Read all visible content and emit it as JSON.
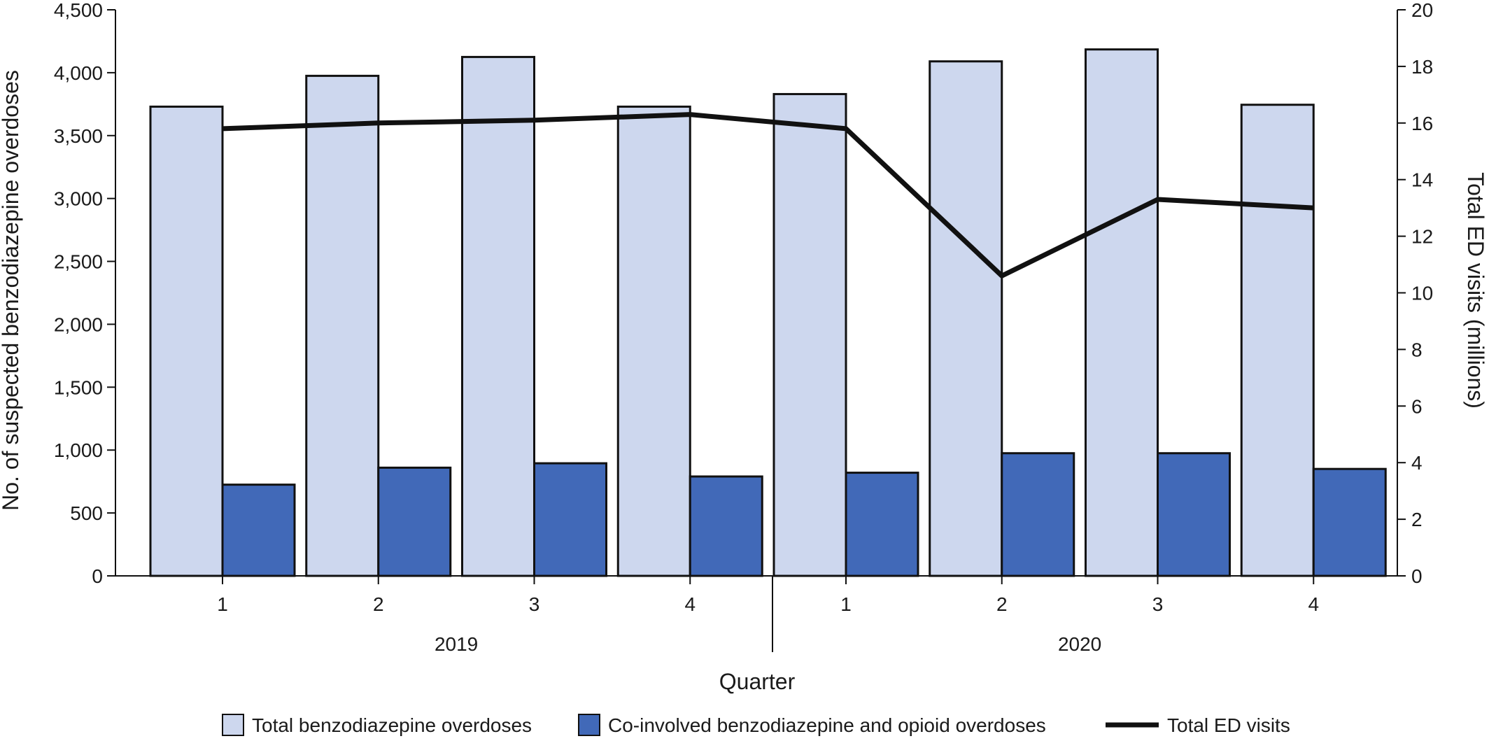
{
  "chart_data": {
    "type": "bar",
    "categories": [
      "1",
      "2",
      "3",
      "4",
      "1",
      "2",
      "3",
      "4"
    ],
    "groups": [
      {
        "label": "2019",
        "categories": [
          "1",
          "2",
          "3",
          "4"
        ]
      },
      {
        "label": "2020",
        "categories": [
          "1",
          "2",
          "3",
          "4"
        ]
      }
    ],
    "series": [
      {
        "name": "Total benzodiazepine overdoses",
        "type": "bar",
        "axis": "left",
        "color": "#cdd7ee",
        "values": [
          3730,
          3975,
          4125,
          3730,
          3830,
          4090,
          4185,
          3745
        ]
      },
      {
        "name": "Co-involved benzodiazepine and opioid overdoses",
        "type": "bar",
        "axis": "left",
        "color": "#4169b8",
        "values": [
          725,
          860,
          895,
          790,
          820,
          975,
          975,
          850
        ]
      },
      {
        "name": "Total ED visits",
        "type": "line",
        "axis": "right",
        "color": "#111111",
        "values": [
          15.8,
          16.0,
          16.1,
          16.3,
          15.8,
          10.6,
          13.3,
          13.0
        ]
      }
    ],
    "xlabel": "Quarter",
    "ylabel": "No. of suspected benzodiazepine overdoses",
    "ylabel_right": "Total ED visits (millions)",
    "ylim": [
      0,
      4500
    ],
    "ylim_right": [
      0,
      20
    ],
    "yticks": [
      "0",
      "500",
      "1,000",
      "1,500",
      "2,000",
      "2,500",
      "3,000",
      "3,500",
      "4,000",
      "4,500"
    ],
    "yticks_right": [
      "0",
      "2",
      "4",
      "6",
      "8",
      "10",
      "12",
      "14",
      "16",
      "18",
      "20"
    ],
    "legend_position": "bottom",
    "grid": false
  }
}
